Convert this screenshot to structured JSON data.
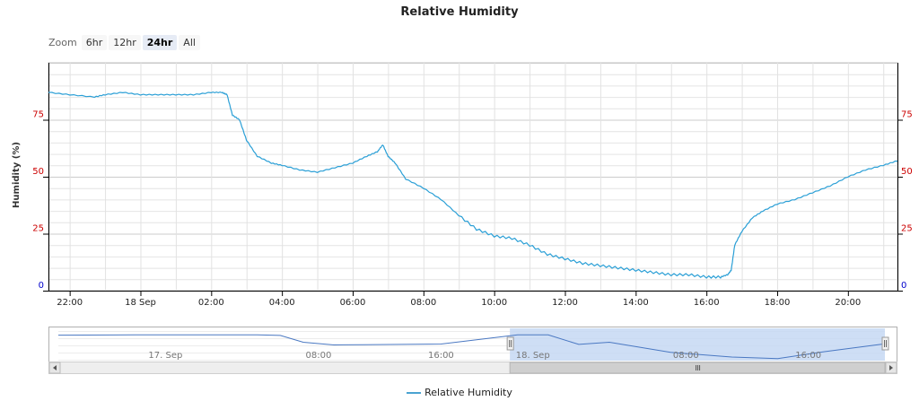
{
  "title": "Relative Humidity",
  "zoom": {
    "label": "Zoom",
    "buttons": [
      {
        "label": "6hr",
        "active": false
      },
      {
        "label": "12hr",
        "active": false
      },
      {
        "label": "24hr",
        "active": true
      },
      {
        "label": "All",
        "active": false
      }
    ]
  },
  "legend": {
    "label": "Relative Humidity"
  },
  "colors": {
    "series": "#2a9fd6",
    "axis_ticks": "#cc0000",
    "axis_zero": "#0000cc",
    "navigator_fill": "#c5d8f3"
  },
  "chart_data": {
    "type": "line",
    "title": "Relative Humidity",
    "ylabel": "Humidity (%)",
    "ylim": [
      0,
      100
    ],
    "yticks": [
      0,
      25,
      50,
      75
    ],
    "grid": true,
    "legend": "bottom-center",
    "xlim_hours": [
      21.4,
      45.4
    ],
    "xticks": [
      {
        "h": 22,
        "label": "22:00"
      },
      {
        "h": 24,
        "label": "18 Sep"
      },
      {
        "h": 26,
        "label": "02:00"
      },
      {
        "h": 28,
        "label": "04:00"
      },
      {
        "h": 30,
        "label": "06:00"
      },
      {
        "h": 32,
        "label": "08:00"
      },
      {
        "h": 34,
        "label": "10:00"
      },
      {
        "h": 36,
        "label": "12:00"
      },
      {
        "h": 38,
        "label": "14:00"
      },
      {
        "h": 40,
        "label": "16:00"
      },
      {
        "h": 42,
        "label": "18:00"
      },
      {
        "h": 44,
        "label": "20:00"
      }
    ],
    "series": [
      {
        "name": "Relative Humidity",
        "x": [
          21.4,
          22.0,
          22.7,
          23.0,
          23.5,
          24.0,
          24.5,
          25.0,
          25.5,
          26.0,
          26.3,
          26.45,
          26.6,
          26.8,
          27.0,
          27.3,
          27.7,
          28.0,
          28.5,
          29.0,
          29.5,
          30.0,
          30.4,
          30.7,
          30.85,
          31.0,
          31.2,
          31.5,
          32.0,
          32.5,
          33.0,
          33.5,
          34.0,
          34.5,
          35.0,
          35.5,
          36.0,
          36.5,
          37.0,
          37.5,
          38.0,
          38.5,
          39.0,
          39.5,
          40.0,
          40.4,
          40.6,
          40.7,
          40.8,
          41.0,
          41.3,
          41.6,
          42.0,
          42.5,
          43.0,
          43.5,
          44.0,
          44.5,
          45.0,
          45.4
        ],
        "y": [
          87,
          86,
          85,
          86,
          87,
          86,
          86,
          86,
          86,
          87,
          87,
          86,
          77,
          75,
          66,
          59,
          56,
          55,
          53,
          52,
          54,
          56,
          59,
          61,
          64,
          59,
          56,
          49,
          45,
          40,
          33,
          27,
          24,
          23,
          20,
          16,
          14,
          12,
          11,
          10,
          9,
          8,
          7,
          7,
          6,
          6,
          7,
          9,
          20,
          26,
          32,
          35,
          38,
          40,
          43,
          46,
          50,
          53,
          55,
          57
        ]
      }
    ]
  },
  "navigator": {
    "labels": [
      {
        "h": 7,
        "text": "17. Sep"
      },
      {
        "h": 17,
        "text": "08:00"
      },
      {
        "h": 25,
        "text": "16:00"
      },
      {
        "h": 31,
        "text": "18. Sep"
      },
      {
        "h": 41,
        "text": "08:00"
      },
      {
        "h": 49,
        "text": "16:00"
      }
    ],
    "range_hours": [
      0,
      54
    ],
    "selected_hours": [
      29.5,
      54
    ],
    "x": [
      0,
      5,
      10,
      13,
      14.5,
      16,
      18,
      20,
      25,
      30,
      32,
      34,
      36,
      40,
      44,
      47,
      50,
      54
    ],
    "y": [
      86,
      87,
      87,
      87,
      85,
      62,
      53,
      54,
      56,
      87,
      87,
      55,
      62,
      28,
      12,
      7,
      30,
      57
    ]
  }
}
